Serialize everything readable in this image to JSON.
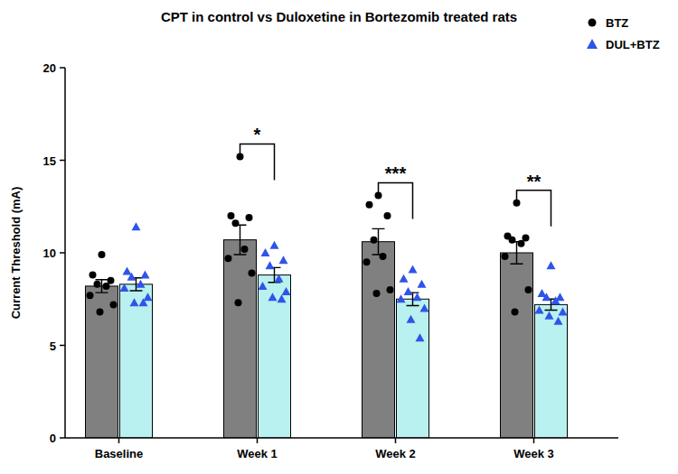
{
  "chart_data": {
    "type": "bar",
    "title": "CPT in control vs Duloxetine in Bortezomib treated rats",
    "y_label": "Current Threshold (mA)",
    "categories": [
      "Baseline",
      "Week 1",
      "Week 2",
      "Week 3"
    ],
    "series": [
      {
        "name": "BTZ",
        "color": "#000000",
        "marker": "circle",
        "values": [
          8.2,
          10.7,
          10.6,
          10.0
        ],
        "errors": [
          0.35,
          0.8,
          0.7,
          0.6
        ],
        "points": [
          [
            9.9,
            8.8,
            8.5,
            8.3,
            8.2,
            7.7,
            7.2,
            6.8
          ],
          [
            15.2,
            12.0,
            11.9,
            11.6,
            10.2,
            9.7,
            8.9,
            7.3
          ],
          [
            13.1,
            12.6,
            12.0,
            10.7,
            9.8,
            9.5,
            8.0,
            7.8
          ],
          [
            12.7,
            10.9,
            10.8,
            10.7,
            10.5,
            9.8,
            8.0,
            6.8
          ]
        ]
      },
      {
        "name": "DUL+BTZ",
        "color": "#2f54e8",
        "marker": "triangle",
        "values": [
          8.3,
          8.8,
          7.5,
          7.2
        ],
        "errors": [
          0.35,
          0.4,
          0.35,
          0.3
        ],
        "points": [
          [
            11.4,
            9.0,
            8.8,
            8.7,
            8.3,
            8.1,
            7.6,
            7.3,
            7.3
          ],
          [
            10.4,
            10.0,
            9.6,
            9.3,
            8.6,
            8.2,
            7.9,
            7.6,
            7.5
          ],
          [
            9.1,
            8.6,
            8.3,
            7.9,
            7.6,
            7.5,
            7.0,
            6.4,
            5.4
          ],
          [
            9.3,
            7.8,
            7.6,
            7.6,
            7.4,
            6.9,
            6.8,
            6.6,
            6.3
          ]
        ]
      }
    ],
    "annotations": [
      {
        "category": "Week 1",
        "text": "*"
      },
      {
        "category": "Week 2",
        "text": "***"
      },
      {
        "category": "Week 3",
        "text": "**"
      }
    ],
    "ylim": [
      0,
      20
    ],
    "yticks": [
      0,
      5,
      10,
      15,
      20
    ],
    "grid": false,
    "legend": "upper right"
  }
}
